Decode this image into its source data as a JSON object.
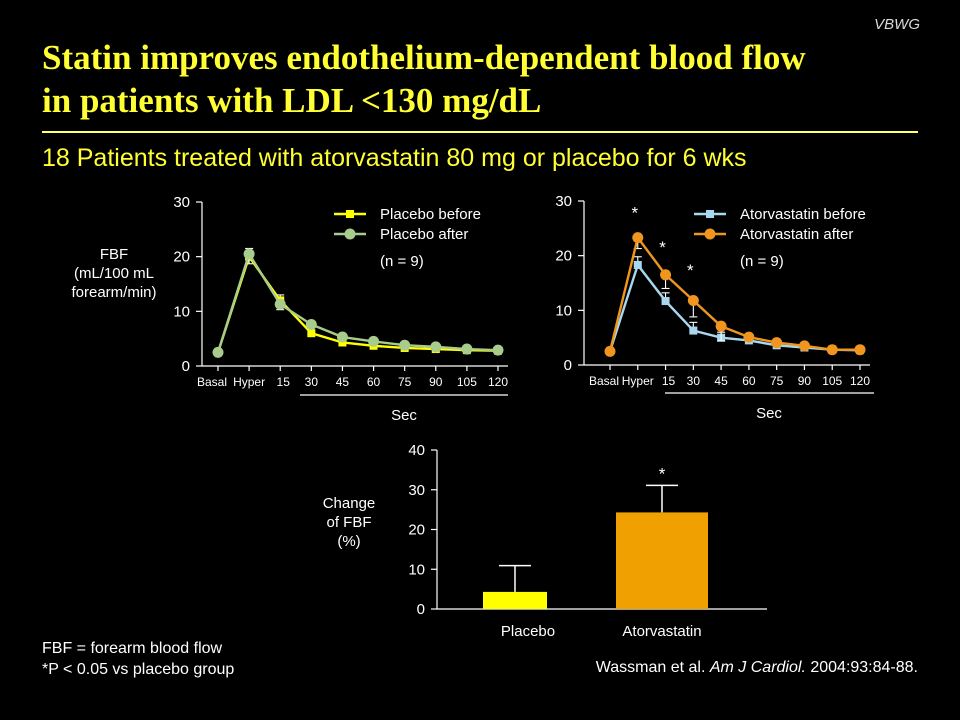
{
  "brand": "VBWG",
  "title_line1": "Statin improves endothelium-dependent blood flow",
  "title_line2": "in patients with LDL <130 mg/dL",
  "subtitle": "18 Patients treated with atorvastatin 80 mg or placebo for 6 wks",
  "colors": {
    "title": "#ffff33",
    "placebo_before": "#ffff00",
    "placebo_after": "#a8cc8c",
    "atorva_before": "#a8d8f0",
    "atorva_after": "#f0961e",
    "bar_placebo": "#ffff00",
    "bar_atorva": "#f0a000"
  },
  "footnote": [
    "FBF = forearm blood flow",
    "*P < 0.05 vs placebo group"
  ],
  "citation": {
    "authors": "Wassman et al.",
    "journal": "Am J Cardiol.",
    "details": "2004:93:84-88."
  },
  "chart_data": [
    {
      "type": "line",
      "ylabel": [
        "FBF",
        "(mL/100 mL",
        "forearm/min)"
      ],
      "xlabel": "Sec",
      "categories": [
        "Basal",
        "Hyper",
        "15",
        "30",
        "45",
        "60",
        "75",
        "90",
        "105",
        "120"
      ],
      "ylim": [
        0,
        30
      ],
      "yticks": [
        0,
        10,
        20,
        30
      ],
      "legend_note": "(n = 9)",
      "legend_position": "top-right",
      "series": [
        {
          "name": "Placebo before",
          "marker": "square",
          "values": [
            2.5,
            20,
            12,
            6,
            4.3,
            3.7,
            3.3,
            3.1,
            2.9,
            2.8
          ],
          "error": [
            0,
            1.5,
            1,
            1.3,
            0,
            0,
            0,
            0,
            0,
            0
          ]
        },
        {
          "name": "Placebo after",
          "marker": "circle",
          "values": [
            2.5,
            20.5,
            11.3,
            7.6,
            5.3,
            4.5,
            3.8,
            3.5,
            3.1,
            2.9
          ],
          "error": [
            0,
            1.8,
            1,
            0,
            0,
            0,
            0,
            0,
            0,
            0
          ]
        }
      ],
      "significance": []
    },
    {
      "type": "line",
      "xlabel": "Sec",
      "categories": [
        "Basal",
        "Hyper",
        "15",
        "30",
        "45",
        "60",
        "75",
        "90",
        "105",
        "120"
      ],
      "ylim": [
        0,
        30
      ],
      "yticks": [
        0,
        10,
        20,
        30
      ],
      "legend_note": "(n = 9)",
      "legend_position": "top-right",
      "series": [
        {
          "name": "Atorvastatin before",
          "marker": "square",
          "values": [
            2.5,
            18.3,
            11.7,
            6.3,
            5,
            4.5,
            3.6,
            3.2,
            2.8,
            2.7
          ],
          "error": [
            0,
            1.5,
            1.5,
            1.5,
            1,
            1,
            0,
            0,
            0,
            0
          ]
        },
        {
          "name": "Atorvastatin after",
          "marker": "circle",
          "values": [
            2.5,
            23.3,
            16.5,
            11.8,
            7.1,
            5.1,
            4.1,
            3.5,
            2.8,
            2.8
          ],
          "error": [
            0,
            2,
            2.5,
            3,
            2.7,
            0,
            0,
            0,
            0,
            0
          ]
        }
      ],
      "significance": [
        {
          "index": 1,
          "label": "*"
        },
        {
          "index": 2,
          "label": "*"
        },
        {
          "index": 3,
          "label": "*"
        }
      ]
    },
    {
      "type": "bar",
      "ylabel": [
        "Change",
        "of FBF",
        "(%)"
      ],
      "categories": [
        "Placebo",
        "Atorvastatin"
      ],
      "values": [
        4.3,
        24.3
      ],
      "error": [
        6.6,
        6.8
      ],
      "ylim": [
        0,
        40
      ],
      "yticks": [
        0,
        10,
        20,
        30,
        40
      ],
      "significance": [
        {
          "index": 1,
          "label": "*"
        }
      ]
    }
  ]
}
